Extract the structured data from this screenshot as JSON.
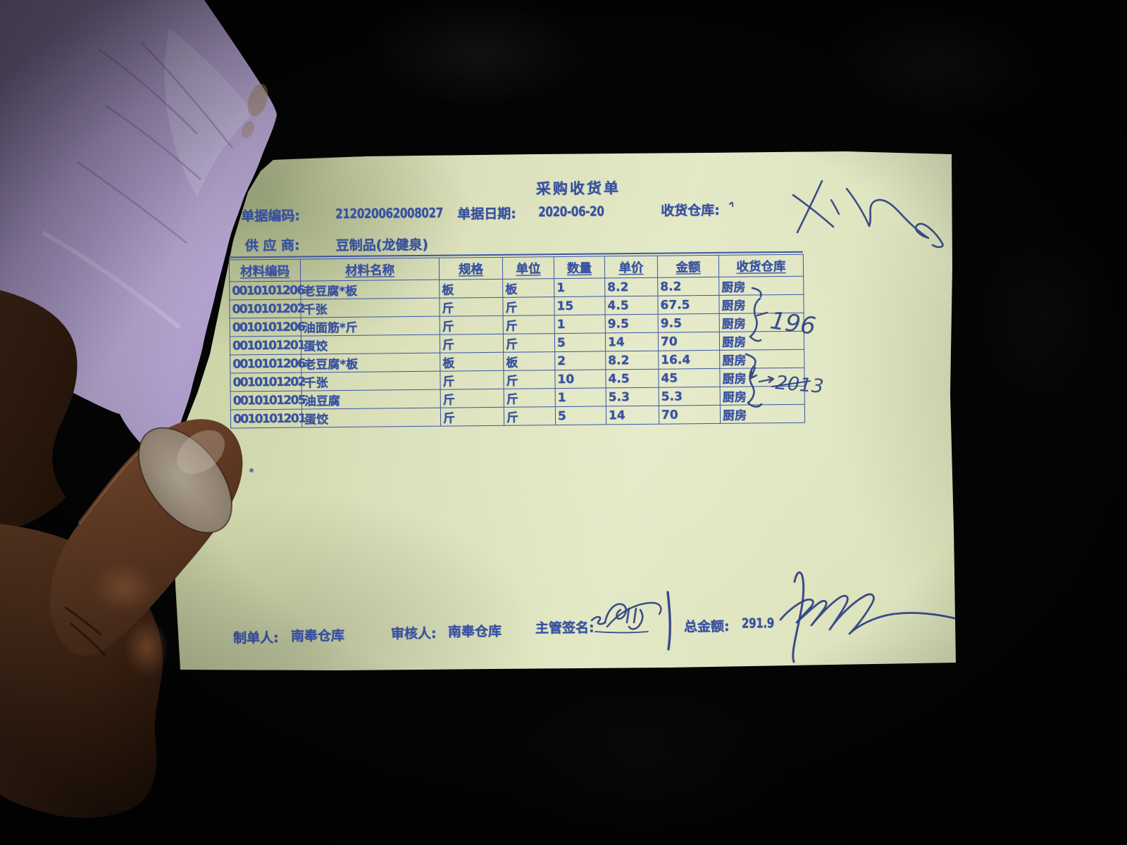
{
  "title": "采购收货单",
  "header": {
    "doc_no_label": "单据编码:",
    "doc_no": "212020062008027",
    "date_label": "单据日期:",
    "date": "2020-06-20",
    "warehouse_label": "收货仓库:",
    "supplier_label": "供 应 商:",
    "supplier": "豆制品(龙健泉)"
  },
  "table": {
    "headers": [
      "材料编码",
      "材料名称",
      "规格",
      "单位",
      "数量",
      "单价",
      "金额",
      "收货仓库"
    ],
    "rows": [
      [
        "0010101206",
        "老豆腐*板",
        "板",
        "板",
        "1",
        "8.2",
        "8.2",
        "厨房"
      ],
      [
        "0010101202",
        "千张",
        "斤",
        "斤",
        "15",
        "4.5",
        "67.5",
        "厨房"
      ],
      [
        "0010101206",
        "油面筋*斤",
        "斤",
        "斤",
        "1",
        "9.5",
        "9.5",
        "厨房"
      ],
      [
        "0010101201",
        "蛋饺",
        "斤",
        "斤",
        "5",
        "14",
        "70",
        "厨房"
      ],
      [
        "0010101206",
        "老豆腐*板",
        "板",
        "板",
        "2",
        "8.2",
        "16.4",
        "厨房"
      ],
      [
        "0010101202",
        "千张",
        "斤",
        "斤",
        "10",
        "4.5",
        "45",
        "厨房"
      ],
      [
        "0010101205",
        "油豆腐",
        "斤",
        "斤",
        "1",
        "5.3",
        "5.3",
        "厨房"
      ],
      [
        "0010101201",
        "蛋饺",
        "斤",
        "斤",
        "5",
        "14",
        "70",
        "厨房"
      ]
    ]
  },
  "footer": {
    "preparer_label": "制单人:",
    "preparer": "南奉仓库",
    "reviewer_label": "审核人:",
    "reviewer": "南奉仓库",
    "sign_label": "主管签名:",
    "total_label": "总金额:",
    "total": "291.9"
  },
  "handwriting": {
    "group1_note": "196",
    "group2_note": "2013"
  },
  "colors": {
    "print_ink": "#3751a0",
    "pen_ink": "#2b3f82",
    "paper": "#dde3bd",
    "purple_paper": "#b3a2cf",
    "background": "#040404"
  }
}
